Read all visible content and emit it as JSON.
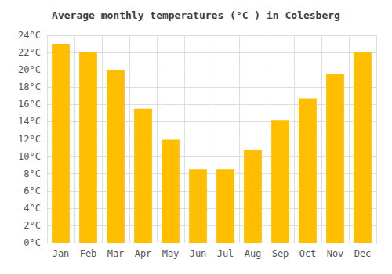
{
  "chart_data": {
    "type": "bar",
    "title": "Average monthly temperatures (°C ) in Colesberg",
    "categories": [
      "Jan",
      "Feb",
      "Mar",
      "Apr",
      "May",
      "Jun",
      "Jul",
      "Aug",
      "Sep",
      "Oct",
      "Nov",
      "Dec"
    ],
    "values": [
      23,
      22,
      20,
      15.5,
      11.9,
      8.5,
      8.5,
      10.7,
      14.2,
      16.7,
      19.5,
      22
    ],
    "color": "#FFBE00",
    "ylim": [
      0,
      24
    ],
    "yticks": [
      {
        "value": 0,
        "label": "0°C"
      },
      {
        "value": 2,
        "label": "2°C"
      },
      {
        "value": 4,
        "label": "4°C"
      },
      {
        "value": 6,
        "label": "6°C"
      },
      {
        "value": 8,
        "label": "8°C"
      },
      {
        "value": 10,
        "label": "10°C"
      },
      {
        "value": 12,
        "label": "12°C"
      },
      {
        "value": 14,
        "label": "14°C"
      },
      {
        "value": 16,
        "label": "16°C"
      },
      {
        "value": 18,
        "label": "18°C"
      },
      {
        "value": 20,
        "label": "20°C"
      },
      {
        "value": 22,
        "label": "22°C"
      },
      {
        "value": 24,
        "label": "24°C"
      }
    ],
    "grid": true
  }
}
